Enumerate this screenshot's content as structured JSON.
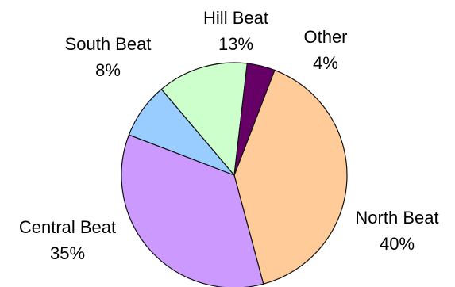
{
  "chart_data": {
    "type": "pie",
    "title": "",
    "start_angle_deg": 21,
    "direction": "clockwise",
    "slices": [
      {
        "name": "North Beat",
        "value": 40,
        "label": "40%",
        "color": "#FFCC99"
      },
      {
        "name": "Central Beat",
        "value": 35,
        "label": "35%",
        "color": "#CC99FF"
      },
      {
        "name": "South Beat",
        "value": 8,
        "label": "8%",
        "color": "#99CCFF"
      },
      {
        "name": "Hill Beat",
        "value": 13,
        "label": "13%",
        "color": "#CCFFCC"
      },
      {
        "name": "Other",
        "value": 4,
        "label": "4%",
        "color": "#660066"
      }
    ]
  }
}
